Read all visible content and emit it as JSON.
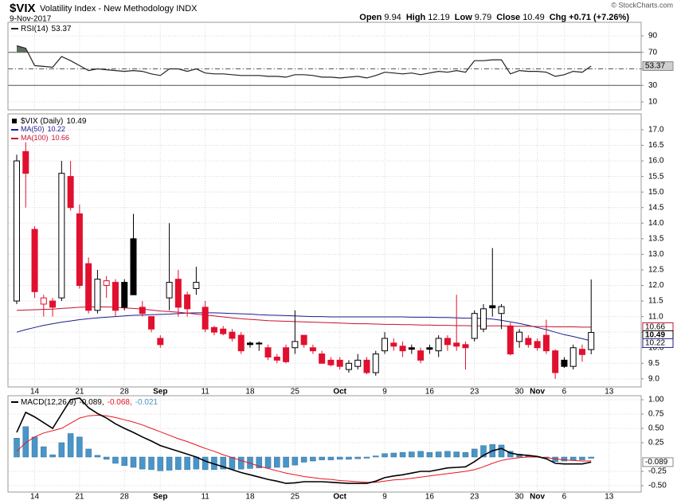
{
  "header": {
    "symbol": "$VIX",
    "name": "Volatility Index - New Methodology INDX",
    "date": "9-Nov-2017",
    "quote_labels": [
      "Open",
      "High",
      "Low",
      "Close"
    ],
    "change": "Chg +0.71 (+7.26%)",
    "credit": "© StockCharts.com"
  },
  "chart_data": [
    {
      "type": "line",
      "legend": "RSI(14)",
      "series": [
        {
          "color": "#222222",
          "values": [
            78,
            75,
            54,
            53,
            52,
            65,
            60,
            54,
            48,
            50,
            49,
            48,
            47,
            48,
            47,
            44,
            42,
            50,
            50,
            47,
            50,
            45,
            44,
            44,
            43,
            42,
            42,
            42,
            41,
            41,
            40,
            43,
            43,
            42,
            40,
            40,
            39,
            40,
            41,
            39,
            42,
            46,
            45,
            44,
            45,
            43,
            45,
            47,
            46,
            48,
            46,
            60,
            60,
            61,
            61,
            44,
            48,
            47,
            47,
            46,
            41,
            43,
            47,
            46,
            53.37
          ]
        }
      ],
      "fill_color": "#5f6f5f",
      "tag_color": "#cfcfcf",
      "reference_lines": [
        {
          "value": 70,
          "style": "solid"
        },
        {
          "value": 50,
          "style": "dashdot"
        },
        {
          "value": 30,
          "style": "solid"
        }
      ],
      "xlim": [
        -0.976,
        69.57
      ],
      "xgrid": [
        2,
        7,
        12,
        16,
        21,
        26,
        31,
        36,
        41,
        46,
        51,
        56,
        58,
        61,
        66
      ],
      "ylim": [
        0.4,
        106.4
      ],
      "yticks": [
        10,
        30,
        50,
        70,
        90
      ],
      "grid": true
    },
    {
      "type": "candlestick",
      "legend": "$VIX (Daily)",
      "up_color": "#000000",
      "down_color": "#e0102e",
      "open": [
        11.5,
        16.3,
        13.8,
        11.4,
        11.5,
        11.6,
        15.5,
        14.3,
        12.7,
        11.2,
        12.0,
        12.1,
        12.1,
        13.5,
        11.3,
        11.0,
        10.3,
        11.6,
        12.2,
        11.7,
        11.9,
        11.3,
        10.65,
        10.6,
        10.5,
        10.4,
        10.15,
        10.15,
        10.0,
        9.7,
        10.0,
        10.0,
        10.4,
        10.0,
        9.8,
        9.6,
        9.6,
        9.3,
        9.4,
        9.6,
        9.2,
        9.9,
        10.15,
        10.05,
        10.0,
        9.9,
        10.0,
        9.9,
        10.3,
        10.15,
        10.1,
        10.3,
        10.6,
        11.35,
        11.1,
        10.7,
        10.2,
        10.3,
        10.2,
        10.4,
        9.9,
        9.6,
        9.4,
        9.95,
        9.94
      ],
      "high": [
        16.2,
        16.6,
        13.9,
        11.7,
        11.6,
        16.0,
        16.0,
        14.6,
        12.9,
        12.5,
        12.3,
        12.2,
        12.2,
        14.3,
        11.5,
        11.0,
        10.4,
        14.0,
        12.5,
        11.8,
        12.6,
        11.5,
        10.7,
        10.7,
        10.6,
        10.5,
        10.2,
        10.2,
        10.1,
        9.8,
        10.1,
        11.2,
        10.4,
        10.1,
        9.9,
        9.7,
        9.7,
        9.6,
        9.8,
        9.7,
        9.9,
        10.5,
        10.3,
        10.2,
        10.1,
        10.0,
        10.1,
        10.4,
        10.4,
        11.7,
        10.2,
        11.2,
        11.4,
        13.2,
        11.4,
        10.8,
        10.6,
        10.4,
        10.3,
        10.9,
        9.95,
        9.7,
        10.1,
        10.1,
        12.19
      ],
      "low": [
        11.4,
        14.5,
        11.6,
        11.0,
        11.0,
        11.5,
        14.4,
        11.9,
        11.1,
        11.1,
        11.6,
        11.0,
        11.2,
        11.7,
        11.0,
        10.5,
        10.0,
        11.2,
        11.0,
        11.0,
        11.7,
        10.5,
        10.4,
        10.4,
        10.2,
        9.8,
        10.0,
        9.9,
        9.6,
        9.5,
        9.5,
        9.8,
        10.0,
        9.8,
        9.5,
        9.4,
        9.3,
        9.2,
        9.3,
        9.15,
        9.1,
        9.8,
        9.9,
        9.7,
        9.8,
        9.5,
        9.8,
        9.7,
        9.9,
        9.9,
        9.3,
        10.2,
        10.5,
        11.0,
        10.6,
        9.75,
        10.0,
        10.0,
        9.9,
        9.8,
        9.0,
        9.35,
        9.3,
        9.55,
        9.79
      ],
      "close": [
        16.0,
        15.6,
        11.8,
        11.6,
        11.3,
        15.6,
        14.5,
        12.0,
        11.2,
        12.2,
        12.15,
        11.2,
        11.3,
        11.7,
        11.1,
        10.6,
        10.1,
        12.1,
        11.3,
        11.25,
        12.1,
        10.6,
        10.5,
        10.45,
        10.3,
        9.9,
        10.1,
        10.12,
        9.7,
        9.6,
        9.55,
        10.2,
        10.1,
        9.9,
        9.5,
        9.45,
        9.4,
        9.5,
        9.6,
        9.2,
        9.8,
        10.3,
        10.05,
        9.9,
        9.95,
        9.6,
        9.95,
        10.3,
        10.1,
        10.05,
        10.0,
        11.1,
        11.25,
        11.28,
        11.32,
        9.8,
        10.5,
        10.1,
        10.0,
        9.9,
        9.2,
        9.4,
        10.0,
        9.78,
        10.49
      ],
      "series": [
        {
          "name": "MA(50)",
          "color": "#1c1c8f",
          "values": [
            10.5,
            10.58,
            10.65,
            10.72,
            10.77,
            10.82,
            10.86,
            10.9,
            10.93,
            10.96,
            10.98,
            11.0,
            11.02,
            11.04,
            11.05,
            11.06,
            11.07,
            11.08,
            11.1,
            11.11,
            11.12,
            11.12,
            11.12,
            11.11,
            11.1,
            11.09,
            11.08,
            11.06,
            11.05,
            11.04,
            11.03,
            11.02,
            11.01,
            11.0,
            11.0,
            10.99,
            10.99,
            10.99,
            10.99,
            10.99,
            10.99,
            10.99,
            10.99,
            10.99,
            10.98,
            10.98,
            10.98,
            10.97,
            10.97,
            10.96,
            10.95,
            10.95,
            10.94,
            10.92,
            10.88,
            10.83,
            10.78,
            10.72,
            10.65,
            10.58,
            10.5,
            10.42,
            10.36,
            10.29,
            10.22
          ]
        },
        {
          "name": "MA(100)",
          "color": "#c8102e",
          "values": [
            11.2,
            11.21,
            11.22,
            11.23,
            11.24,
            11.26,
            11.28,
            11.3,
            11.31,
            11.31,
            11.31,
            11.3,
            11.28,
            11.26,
            11.24,
            11.21,
            11.18,
            11.16,
            11.14,
            11.11,
            11.08,
            11.05,
            11.02,
            10.99,
            10.96,
            10.93,
            10.91,
            10.89,
            10.87,
            10.86,
            10.85,
            10.84,
            10.83,
            10.82,
            10.81,
            10.8,
            10.79,
            10.78,
            10.77,
            10.77,
            10.76,
            10.75,
            10.75,
            10.74,
            10.74,
            10.73,
            10.73,
            10.72,
            10.72,
            10.71,
            10.71,
            10.7,
            10.7,
            10.7,
            10.7,
            10.69,
            10.69,
            10.69,
            10.68,
            10.68,
            10.67,
            10.67,
            10.67,
            10.66,
            10.66
          ]
        }
      ],
      "xlim": [
        -0.976,
        69.57
      ],
      "xticks": [
        {
          "value": 2,
          "label": "14"
        },
        {
          "value": 7,
          "label": "21"
        },
        {
          "value": 12,
          "label": "28"
        },
        {
          "value": 16,
          "label": "Sep"
        },
        {
          "value": 21,
          "label": "11"
        },
        {
          "value": 26,
          "label": "18"
        },
        {
          "value": 31,
          "label": "25"
        },
        {
          "value": 36,
          "label": "Oct"
        },
        {
          "value": 41,
          "label": "9"
        },
        {
          "value": 46,
          "label": "16"
        },
        {
          "value": 51,
          "label": "23"
        },
        {
          "value": 56,
          "label": "30"
        },
        {
          "value": 58,
          "label": "Nov"
        },
        {
          "value": 61,
          "label": "6"
        },
        {
          "value": 66,
          "label": "13"
        }
      ],
      "ylim": [
        8.74,
        17.51
      ],
      "yticks": [
        {
          "value": 9,
          "label": "9.0"
        },
        9.5,
        {
          "value": 10,
          "label": "10.0"
        },
        10.5,
        {
          "value": 11,
          "label": "11.0"
        },
        11.5,
        {
          "value": 12,
          "label": "12.0"
        },
        12.5,
        {
          "value": 13,
          "label": "13.0"
        },
        13.5,
        {
          "value": 14,
          "label": "14.0"
        },
        14.5,
        {
          "value": 15,
          "label": "15.0"
        },
        15.5,
        {
          "value": 16,
          "label": "16.0"
        },
        16.5,
        {
          "value": 17,
          "label": "17.0"
        }
      ],
      "grid": true
    },
    {
      "type": "macd",
      "legend": [
        "MACD(12,26,9)",
        "-0.089,",
        "-0.068,",
        "-0.021"
      ],
      "series": [
        {
          "color": "#000000",
          "values": [
            0.43,
            0.78,
            0.7,
            0.6,
            0.5,
            0.75,
            1.0,
            1.03,
            0.86,
            0.76,
            0.68,
            0.58,
            0.5,
            0.43,
            0.35,
            0.28,
            0.2,
            0.15,
            0.1,
            0.05,
            0.0,
            -0.07,
            -0.12,
            -0.17,
            -0.22,
            -0.27,
            -0.31,
            -0.35,
            -0.39,
            -0.42,
            -0.46,
            -0.45,
            -0.43,
            -0.43,
            -0.43,
            -0.44,
            -0.45,
            -0.46,
            -0.46,
            -0.46,
            -0.42,
            -0.36,
            -0.33,
            -0.31,
            -0.28,
            -0.25,
            -0.25,
            -0.22,
            -0.19,
            -0.18,
            -0.17,
            -0.08,
            0.03,
            0.11,
            0.15,
            0.07,
            0.04,
            0.03,
            0.01,
            -0.03,
            -0.11,
            -0.12,
            -0.12,
            -0.12,
            -0.089
          ]
        },
        {
          "color": "#e8141c",
          "values": [
            0.1,
            0.25,
            0.35,
            0.42,
            0.46,
            0.5,
            0.59,
            0.68,
            0.72,
            0.73,
            0.72,
            0.69,
            0.65,
            0.61,
            0.56,
            0.5,
            0.44,
            0.38,
            0.32,
            0.27,
            0.21,
            0.15,
            0.1,
            0.04,
            -0.01,
            -0.06,
            -0.11,
            -0.16,
            -0.2,
            -0.24,
            -0.28,
            -0.31,
            -0.34,
            -0.36,
            -0.38,
            -0.39,
            -0.41,
            -0.42,
            -0.43,
            -0.44,
            -0.44,
            -0.42,
            -0.4,
            -0.39,
            -0.37,
            -0.35,
            -0.33,
            -0.31,
            -0.29,
            -0.27,
            -0.25,
            -0.22,
            -0.17,
            -0.11,
            -0.06,
            -0.03,
            -0.01,
            0.0,
            0.0,
            -0.01,
            -0.03,
            -0.05,
            -0.06,
            -0.07,
            -0.068
          ]
        },
        {
          "color": "#4a95c8",
          "values": [
            0.33,
            0.53,
            0.35,
            0.18,
            0.04,
            0.25,
            0.41,
            0.35,
            0.14,
            0.03,
            -0.04,
            -0.11,
            -0.15,
            -0.18,
            -0.21,
            -0.22,
            -0.24,
            -0.23,
            -0.22,
            -0.22,
            -0.21,
            -0.22,
            -0.22,
            -0.21,
            -0.21,
            -0.21,
            -0.2,
            -0.19,
            -0.19,
            -0.18,
            -0.18,
            -0.14,
            -0.09,
            -0.07,
            -0.05,
            -0.05,
            -0.04,
            -0.04,
            -0.03,
            -0.02,
            0.02,
            0.06,
            0.07,
            0.08,
            0.09,
            0.1,
            0.08,
            0.09,
            0.1,
            0.09,
            0.08,
            0.14,
            0.2,
            0.22,
            0.21,
            0.1,
            0.05,
            0.03,
            0.01,
            -0.02,
            -0.08,
            -0.07,
            -0.06,
            -0.05,
            -0.021
          ]
        }
      ],
      "xlim": [
        -0.976,
        69.57
      ],
      "xticks": [
        {
          "value": 2,
          "label": "14"
        },
        {
          "value": 7,
          "label": "21"
        },
        {
          "value": 12,
          "label": "28"
        },
        {
          "value": 16,
          "label": "Sep"
        },
        {
          "value": 21,
          "label": "11"
        },
        {
          "value": 26,
          "label": "18"
        },
        {
          "value": 31,
          "label": "25"
        },
        {
          "value": 36,
          "label": "Oct"
        },
        {
          "value": 41,
          "label": "9"
        },
        {
          "value": 46,
          "label": "16"
        },
        {
          "value": 51,
          "label": "23"
        },
        {
          "value": 56,
          "label": "30"
        },
        {
          "value": 58,
          "label": "Nov"
        },
        {
          "value": 61,
          "label": "6"
        },
        {
          "value": 66,
          "label": "13"
        }
      ],
      "ylim": [
        -0.611,
        1.07
      ],
      "yticks": [
        {
          "value": 1,
          "label": "1.00"
        },
        0.75,
        {
          "value": 0.5,
          "label": "0.50"
        },
        0.25,
        -0.25,
        {
          "value": -0.5,
          "label": "-0.50"
        }
      ],
      "grid": true
    }
  ]
}
